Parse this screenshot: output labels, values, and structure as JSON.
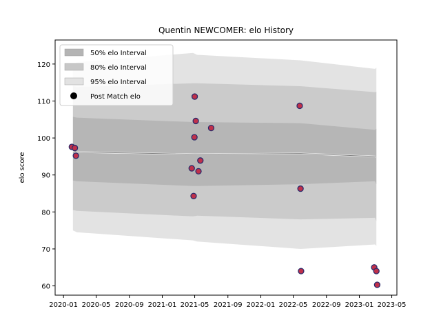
{
  "chart_data": {
    "type": "scatter",
    "title": "Quentin NEWCOMER: elo History",
    "xlabel": "",
    "ylabel": "elo score",
    "xlim": [
      "2019-12-01",
      "2023-05-20"
    ],
    "ylim": [
      57.5,
      126.5
    ],
    "x_ticks": [
      "2020-01",
      "2020-05",
      "2020-09",
      "2021-01",
      "2021-05",
      "2021-09",
      "2022-01",
      "2022-05",
      "2022-09",
      "2023-01",
      "2023-05"
    ],
    "y_ticks": [
      60,
      70,
      80,
      90,
      100,
      110,
      120
    ],
    "legend_position": "top-left",
    "legend": [
      {
        "label": "50% elo Interval",
        "kind": "band",
        "color": "#b4b4b4"
      },
      {
        "label": "80% elo Interval",
        "kind": "band",
        "color": "#c7c7c7"
      },
      {
        "label": "95% elo Interval",
        "kind": "band",
        "color": "#e2e2e2"
      },
      {
        "label": "Post Match elo",
        "kind": "marker",
        "color": "#000000"
      }
    ],
    "colors": {
      "marker_fill": "#c0304a",
      "marker_edge": "#2b2b6b",
      "band_fill": "#999999",
      "mean_line": "#808080"
    },
    "mean_line": [
      {
        "x": "2020-02-05",
        "y": 96.6
      },
      {
        "x": "2020-02-20",
        "y": 96.2
      },
      {
        "x": "2021-05-01",
        "y": 95.6
      },
      {
        "x": "2022-05-28",
        "y": 95.8
      },
      {
        "x": "2023-03-01",
        "y": 95.0
      },
      {
        "x": "2023-03-05",
        "y": 94.9
      }
    ],
    "intervals": [
      {
        "x": "2020-02-05",
        "p50": [
          88.5,
          105.7
        ],
        "p80": [
          80.5,
          114.0
        ],
        "p95": [
          75.0,
          120.0
        ]
      },
      {
        "x": "2020-02-20",
        "p50": [
          88.3,
          105.5
        ],
        "p80": [
          80.3,
          113.8
        ],
        "p95": [
          74.5,
          120.5
        ]
      },
      {
        "x": "2021-04-25",
        "p50": [
          87.0,
          104.3
        ],
        "p80": [
          78.8,
          114.8
        ],
        "p95": [
          72.3,
          123.0
        ]
      },
      {
        "x": "2021-05-10",
        "p50": [
          87.0,
          104.3
        ],
        "p80": [
          79.0,
          114.8
        ],
        "p95": [
          72.0,
          122.5
        ]
      },
      {
        "x": "2022-05-28",
        "p50": [
          87.5,
          104.0
        ],
        "p80": [
          78.0,
          114.0
        ],
        "p95": [
          70.0,
          121.0
        ]
      },
      {
        "x": "2023-02-28",
        "p50": [
          88.3,
          102.2
        ],
        "p80": [
          78.4,
          112.4
        ],
        "p95": [
          71.2,
          118.7
        ]
      },
      {
        "x": "2023-03-05",
        "p50": [
          87.5,
          102.5
        ],
        "p80": [
          77.5,
          112.5
        ],
        "p95": [
          70.8,
          119.0
        ]
      }
    ],
    "points": [
      {
        "x": "2020-02-01",
        "y": 97.6
      },
      {
        "x": "2020-02-12",
        "y": 97.3
      },
      {
        "x": "2020-02-16",
        "y": 95.2
      },
      {
        "x": "2021-04-20",
        "y": 91.8
      },
      {
        "x": "2021-04-27",
        "y": 84.3
      },
      {
        "x": "2021-04-30",
        "y": 100.2
      },
      {
        "x": "2021-05-01",
        "y": 111.2
      },
      {
        "x": "2021-05-05",
        "y": 104.6
      },
      {
        "x": "2021-05-15",
        "y": 91.0
      },
      {
        "x": "2021-05-22",
        "y": 93.9
      },
      {
        "x": "2021-07-01",
        "y": 102.7
      },
      {
        "x": "2022-05-25",
        "y": 108.7
      },
      {
        "x": "2022-05-28",
        "y": 86.3
      },
      {
        "x": "2022-05-30",
        "y": 64.0
      },
      {
        "x": "2023-02-25",
        "y": 65.0
      },
      {
        "x": "2023-03-05",
        "y": 64.0
      },
      {
        "x": "2023-03-08",
        "y": 60.3
      }
    ]
  }
}
